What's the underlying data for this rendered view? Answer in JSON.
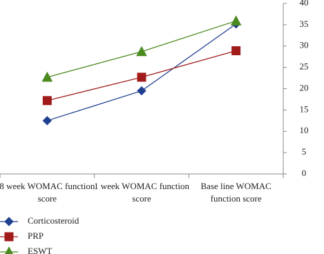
{
  "chart_data": {
    "type": "line",
    "categories": [
      "8 week WOMAC function score",
      "1 week WOMAC function score",
      "Base line WOMAC function score"
    ],
    "series": [
      {
        "name": "Corticosteroid",
        "color": "#1f3f8f",
        "marker": "diamond",
        "values": [
          12.5,
          19.5,
          35.2
        ]
      },
      {
        "name": "PRP",
        "color": "#a11b1b",
        "marker": "square",
        "values": [
          17.2,
          22.7,
          28.9
        ]
      },
      {
        "name": "ESWT",
        "color": "#4b8a1f",
        "marker": "triangle",
        "values": [
          22.7,
          28.7,
          35.9
        ]
      }
    ],
    "ylim": [
      0,
      40
    ],
    "yticks": [
      0,
      5,
      10,
      15,
      20,
      25,
      30,
      35,
      40
    ],
    "y_axis_side": "right",
    "grid": false,
    "legend_position": "bottom"
  }
}
